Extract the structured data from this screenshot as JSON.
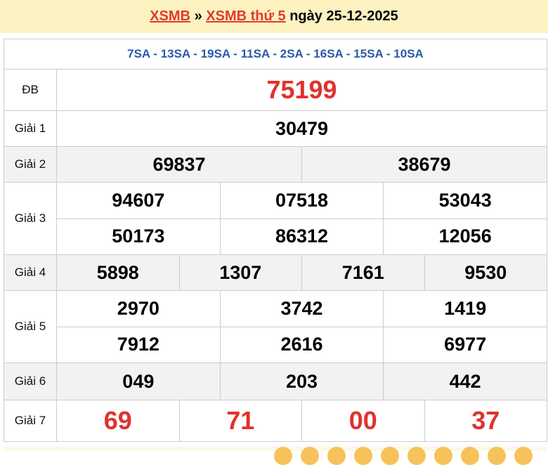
{
  "header": {
    "link1": "XSMB",
    "sep": " » ",
    "link2": "XSMB thứ 5",
    "date": " ngày 25-12-2025"
  },
  "codes": "7SA - 13SA - 19SA - 11SA - 2SA - 16SA - 15SA - 10SA",
  "prizes": [
    {
      "label": "ĐB",
      "lines": [
        [
          "75199"
        ]
      ],
      "red": true
    },
    {
      "label": "Giải 1",
      "lines": [
        [
          "30479"
        ]
      ]
    },
    {
      "label": "Giải 2",
      "lines": [
        [
          "69837",
          "38679"
        ]
      ]
    },
    {
      "label": "Giải 3",
      "lines": [
        [
          "94607",
          "07518",
          "53043"
        ],
        [
          "50173",
          "86312",
          "12056"
        ]
      ]
    },
    {
      "label": "Giải 4",
      "lines": [
        [
          "5898",
          "1307",
          "7161",
          "9530"
        ]
      ]
    },
    {
      "label": "Giải 5",
      "lines": [
        [
          "2970",
          "3742",
          "1419"
        ],
        [
          "7912",
          "2616",
          "6977"
        ]
      ]
    },
    {
      "label": "Giải 6",
      "lines": [
        [
          "049",
          "203",
          "442"
        ]
      ]
    },
    {
      "label": "Giải 7",
      "lines": [
        [
          "69",
          "71",
          "00",
          "37"
        ]
      ],
      "red": true
    }
  ],
  "colors": {
    "header_bg": "#fdf2c2",
    "link": "#e03a2f",
    "codes": "#2b5aa8",
    "red_number": "#e0322c",
    "alt_row": "#f2f2f2"
  }
}
